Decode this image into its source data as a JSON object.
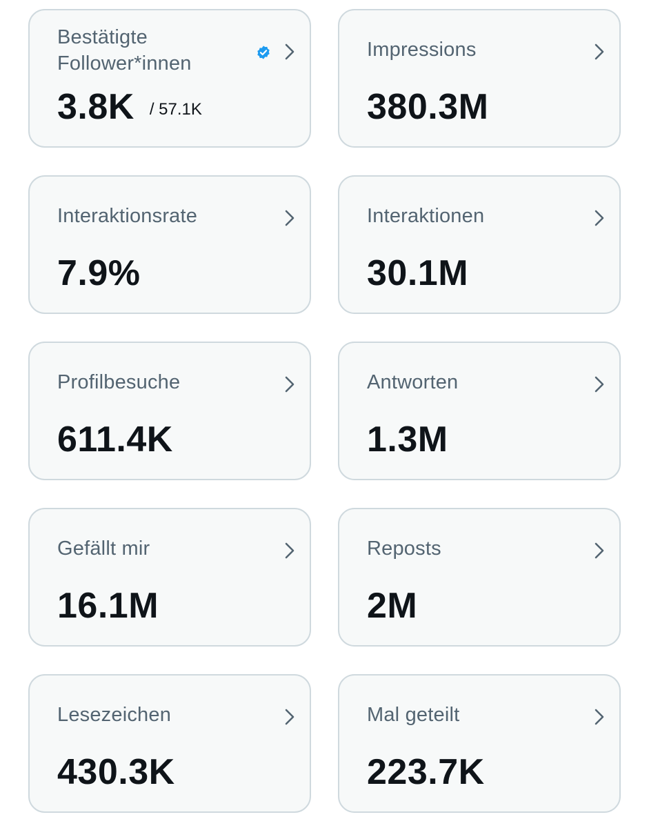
{
  "cards": [
    {
      "label": "Bestätigte Follower*innen",
      "value": "3.8K",
      "suffix": "/ 57.1K",
      "icon": "verified-badge-icon",
      "accent": "#1d9bf0"
    },
    {
      "label": "Impressions",
      "value": "380.3M"
    },
    {
      "label": "Interaktionsrate",
      "value": "7.9%"
    },
    {
      "label": "Interaktionen",
      "value": "30.1M"
    },
    {
      "label": "Profilbesuche",
      "value": "611.4K"
    },
    {
      "label": "Antworten",
      "value": "1.3M"
    },
    {
      "label": "Gefällt mir",
      "value": "16.1M"
    },
    {
      "label": "Reposts",
      "value": "2M"
    },
    {
      "label": "Lesezeichen",
      "value": "430.3K"
    },
    {
      "label": "Mal geteilt",
      "value": "223.7K"
    }
  ],
  "colors": {
    "card_background": "#f7f9f9",
    "card_border": "#cfd9de",
    "label": "#536471",
    "value": "#0f1419",
    "verified": "#1d9bf0"
  },
  "icons": {
    "chevron": "chevron-right-icon",
    "verified": "verified-badge-icon"
  }
}
